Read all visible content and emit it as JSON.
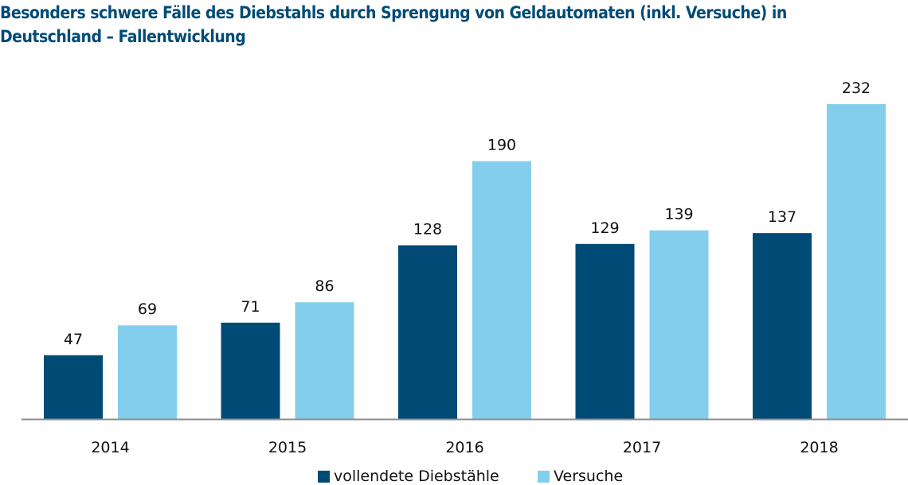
{
  "chart_data": {
    "type": "bar",
    "title": "Besonders schwere Fälle des Diebstahls durch Sprengung von Geldautomaten (inkl. Versuche) in Deutschland – Fallentwicklung",
    "title_lines": [
      "Besonders schwere Fälle des Diebstahls durch Sprengung von Geldautomaten (inkl. Versuche) in",
      "Deutschland – Fallentwicklung"
    ],
    "xlabel": "",
    "ylabel": "",
    "categories": [
      "2014",
      "2015",
      "2016",
      "2017",
      "2018"
    ],
    "series": [
      {
        "name": "vollendete Diebstähle",
        "color": "#004b76",
        "values": [
          47,
          71,
          128,
          129,
          137
        ]
      },
      {
        "name": "Versuche",
        "color": "#84ceed",
        "values": [
          69,
          86,
          190,
          139,
          232
        ]
      }
    ],
    "ylim": [
      0,
      232
    ],
    "grid": false,
    "y_axis_visible": false,
    "data_labels": true,
    "legend_position": "bottom-center",
    "axis_color": "#8c8c8c"
  }
}
